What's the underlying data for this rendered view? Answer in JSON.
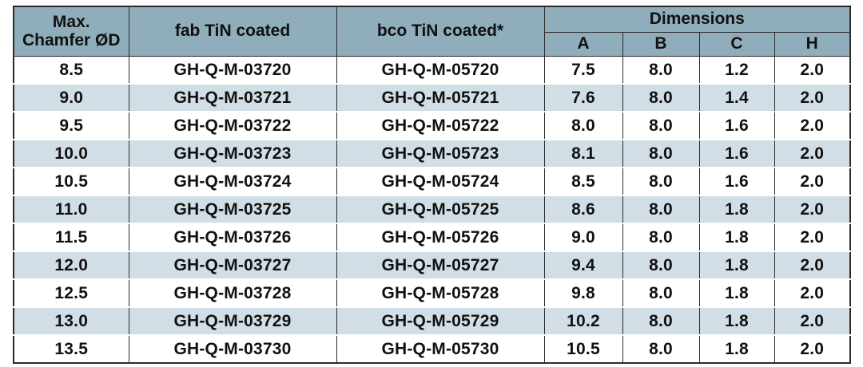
{
  "header": {
    "col1": "Max.\nChamfer ØD",
    "col2": "fab TiN coated",
    "col3": "bco TiN coated*",
    "group": "Dimensions",
    "dims": [
      "A",
      "B",
      "C",
      "H"
    ]
  },
  "rows": [
    [
      "8.5",
      "GH-Q-M-03720",
      "GH-Q-M-05720",
      "7.5",
      "8.0",
      "1.2",
      "2.0"
    ],
    [
      "9.0",
      "GH-Q-M-03721",
      "GH-Q-M-05721",
      "7.6",
      "8.0",
      "1.4",
      "2.0"
    ],
    [
      "9.5",
      "GH-Q-M-03722",
      "GH-Q-M-05722",
      "8.0",
      "8.0",
      "1.6",
      "2.0"
    ],
    [
      "10.0",
      "GH-Q-M-03723",
      "GH-Q-M-05723",
      "8.1",
      "8.0",
      "1.6",
      "2.0"
    ],
    [
      "10.5",
      "GH-Q-M-03724",
      "GH-Q-M-05724",
      "8.5",
      "8.0",
      "1.6",
      "2.0"
    ],
    [
      "11.0",
      "GH-Q-M-03725",
      "GH-Q-M-05725",
      "8.6",
      "8.0",
      "1.8",
      "2.0"
    ],
    [
      "11.5",
      "GH-Q-M-03726",
      "GH-Q-M-05726",
      "9.0",
      "8.0",
      "1.8",
      "2.0"
    ],
    [
      "12.0",
      "GH-Q-M-03727",
      "GH-Q-M-05727",
      "9.4",
      "8.0",
      "1.8",
      "2.0"
    ],
    [
      "12.5",
      "GH-Q-M-03728",
      "GH-Q-M-05728",
      "9.8",
      "8.0",
      "1.8",
      "2.0"
    ],
    [
      "13.0",
      "GH-Q-M-03729",
      "GH-Q-M-05729",
      "10.2",
      "8.0",
      "1.8",
      "2.0"
    ],
    [
      "13.5",
      "GH-Q-M-03730",
      "GH-Q-M-05730",
      "10.5",
      "8.0",
      "1.8",
      "2.0"
    ]
  ]
}
